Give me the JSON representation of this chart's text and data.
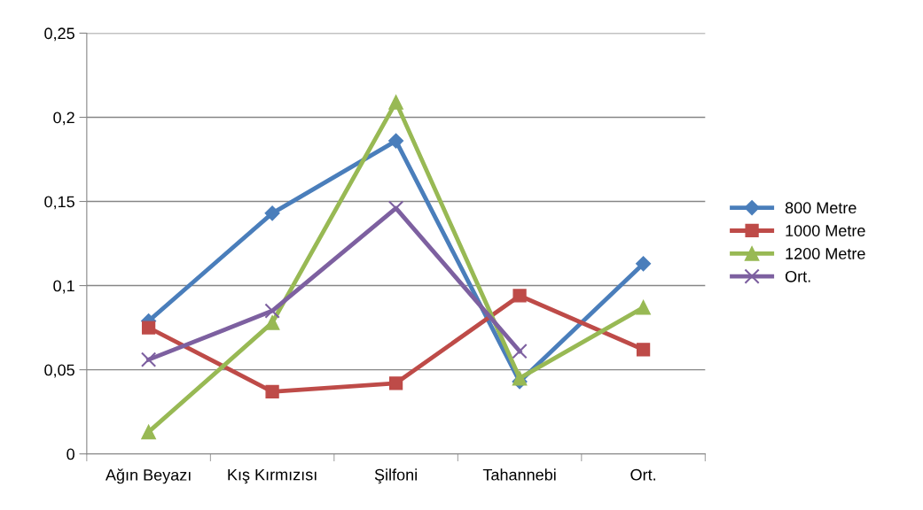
{
  "chart_data": {
    "type": "line",
    "categories": [
      "Ağın Beyazı",
      "Kış Kırmızısı",
      "Şilfoni",
      "Tahannebi",
      "Ort."
    ],
    "series": [
      {
        "name": "800 Metre",
        "color": "#4a7ebb",
        "marker": "diamond",
        "values": [
          0.079,
          0.143,
          0.186,
          0.043,
          0.113
        ]
      },
      {
        "name": "1000 Metre",
        "color": "#be4b48",
        "marker": "square",
        "values": [
          0.075,
          0.037,
          0.042,
          0.094,
          0.062
        ]
      },
      {
        "name": "1200 Metre",
        "color": "#98b954",
        "marker": "triangle",
        "values": [
          0.013,
          0.078,
          0.209,
          0.045,
          0.087
        ]
      },
      {
        "name": "Ort.",
        "color": "#7d60a0",
        "marker": "cross",
        "values": [
          0.056,
          0.085,
          0.146,
          0.061,
          null
        ]
      }
    ],
    "ylim": [
      0,
      0.25
    ],
    "yticks": [
      {
        "value": 0,
        "label": "0"
      },
      {
        "value": 0.05,
        "label": "0,05"
      },
      {
        "value": 0.1,
        "label": "0,1"
      },
      {
        "value": 0.15,
        "label": "0,15"
      },
      {
        "value": 0.2,
        "label": "0,2"
      },
      {
        "value": 0.25,
        "label": "0,25"
      }
    ],
    "grid": "y",
    "legend": "right",
    "line_style": "solid"
  }
}
